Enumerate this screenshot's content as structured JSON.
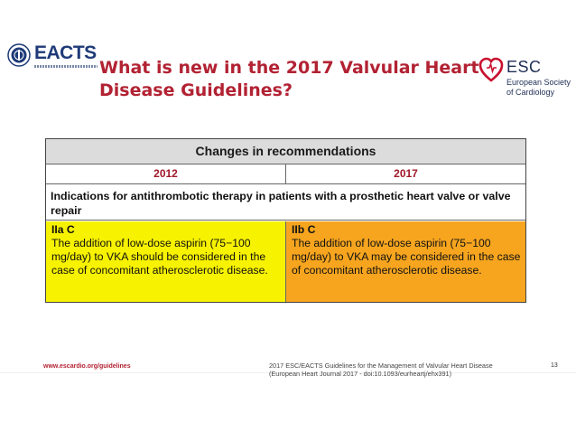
{
  "header": {
    "eacts_logo_text": "EACTS",
    "eacts_tagline": "European Association for Cardio-Thoracic Surgery",
    "title_line1": "What is new in the 2017 Valvular Heart",
    "title_line2": "Disease Guidelines?",
    "esc_logo_text": "ESC",
    "esc_sub_line1": "European Society",
    "esc_sub_line2": "of Cardiology"
  },
  "table": {
    "heading": "Changes in recommendations",
    "year_left": "2012",
    "year_right": "2017",
    "indication": "Indications for antithrombotic therapy in patients with a prosthetic heart valve or valve repair",
    "left_class": "IIa C",
    "left_text": "The addition of low-dose aspirin (75−100 mg/day) to VKA should be considered in the case of concomitant atherosclerotic disease.",
    "right_class": "IIb C",
    "right_text": "The addition of low-dose aspirin (75−100 mg/day) to VKA may be considered in the case of concomitant atherosclerotic disease."
  },
  "footer": {
    "url": "www.escardio.org/guidelines",
    "citation_line1": "2017 ESC/EACTS Guidelines for the Management of Valvular Heart Disease",
    "citation_line2": "(European Heart Journal 2017 - doi:10.1093/eurheartj/ehx391)",
    "page_number": "13"
  },
  "colors": {
    "title": "#b22233",
    "cell_2012": "#f7f200",
    "cell_2017": "#f7a51f",
    "header_band": "#dcdcdc"
  }
}
